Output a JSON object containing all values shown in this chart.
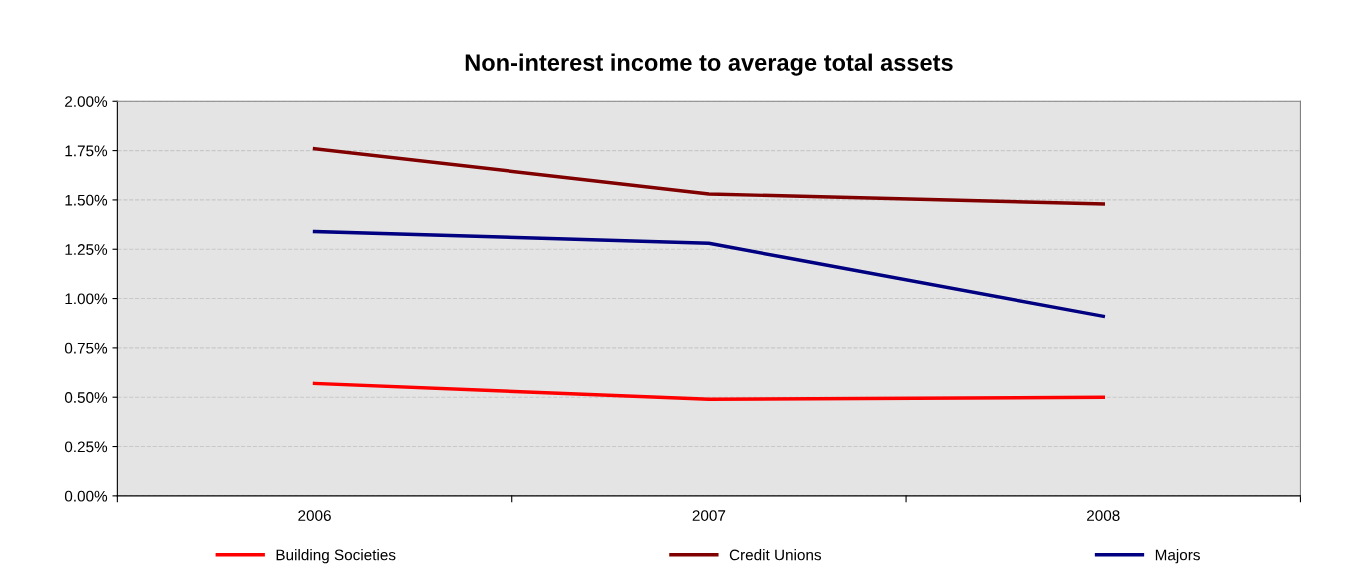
{
  "chart_data": {
    "type": "line",
    "title": "Non-interest income to average total assets",
    "categories": [
      "2006",
      "2007",
      "2008"
    ],
    "series": [
      {
        "name": "Building Societies",
        "color": "#ff0000",
        "values": [
          0.57,
          0.49,
          0.5
        ]
      },
      {
        "name": "Credit Unions",
        "color": "#800000",
        "values": [
          1.76,
          1.53,
          1.48
        ]
      },
      {
        "name": "Majors",
        "color": "#000080",
        "values": [
          1.34,
          1.28,
          0.91
        ]
      }
    ],
    "ylim": [
      0,
      2
    ],
    "yticks": [
      {
        "value": 0,
        "label": "0.00%"
      },
      {
        "value": 0.25,
        "label": "0.25%"
      },
      {
        "value": 0.5,
        "label": "0.50%"
      },
      {
        "value": 0.75,
        "label": "0.75%"
      },
      {
        "value": 1,
        "label": "1.00%"
      },
      {
        "value": 1.25,
        "label": "1.25%"
      },
      {
        "value": 1.5,
        "label": "1.50%"
      },
      {
        "value": 1.75,
        "label": "1.75%"
      },
      {
        "value": 2,
        "label": "2.00%"
      }
    ],
    "grid": "y",
    "legend": "bottom",
    "marker": "none",
    "line_style": "solid"
  }
}
